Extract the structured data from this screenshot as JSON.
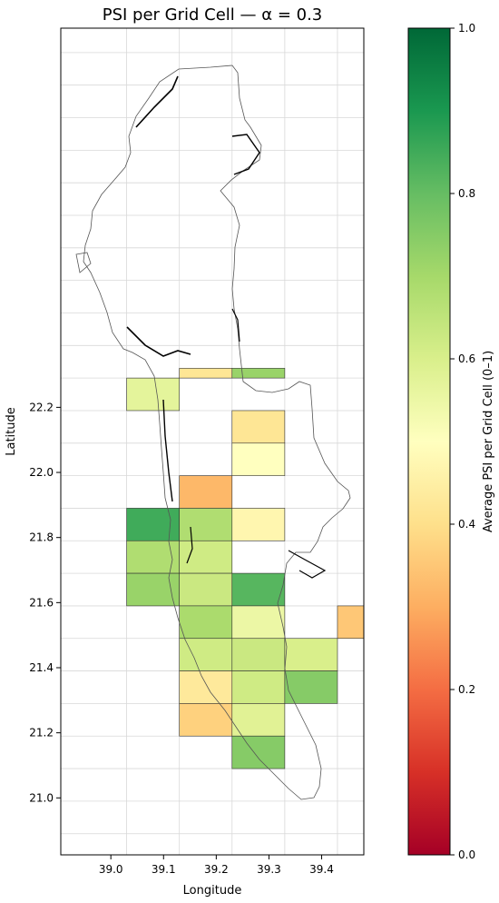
{
  "chart_data": {
    "type": "heatmap",
    "title": "PSI per Grid Cell — α = 0.3",
    "xlabel": "Longitude",
    "ylabel": "Latitude",
    "xlim": [
      38.905,
      39.48
    ],
    "ylim": [
      20.825,
      23.365
    ],
    "x_ticks": [
      "39.0",
      "39.1",
      "39.2",
      "39.3",
      "39.4"
    ],
    "y_ticks": [
      "21.0",
      "21.2",
      "21.4",
      "21.6",
      "21.8",
      "22.0",
      "22.2"
    ],
    "grid": true,
    "colorbar": {
      "label": "Average PSI per Grid Cell (0–1)",
      "colormap": "RdYlGn",
      "range": [
        0,
        1
      ],
      "ticks": [
        "0.0",
        "0.2",
        "0.4",
        "0.6",
        "0.8",
        "1.0"
      ]
    },
    "cells": [
      {
        "lon": [
          39.13,
          39.23
        ],
        "lat": [
          21.89,
          21.99
        ],
        "psi": 0.32
      },
      {
        "lon": [
          39.03,
          39.13
        ],
        "lat": [
          21.79,
          21.89
        ],
        "psi": 0.85
      },
      {
        "lon": [
          39.13,
          39.23
        ],
        "lat": [
          21.79,
          21.89
        ],
        "psi": 0.68
      },
      {
        "lon": [
          39.03,
          39.13
        ],
        "lat": [
          21.69,
          21.79
        ],
        "psi": 0.68
      },
      {
        "lon": [
          39.13,
          39.23
        ],
        "lat": [
          21.69,
          21.79
        ],
        "psi": 0.62
      },
      {
        "lon": [
          39.03,
          39.13
        ],
        "lat": [
          21.59,
          21.69
        ],
        "psi": 0.72
      },
      {
        "lon": [
          39.13,
          39.23
        ],
        "lat": [
          21.59,
          21.69
        ],
        "psi": 0.63
      },
      {
        "lon": [
          39.23,
          39.33
        ],
        "lat": [
          21.59,
          21.69
        ],
        "psi": 0.82
      },
      {
        "lon": [
          39.13,
          39.23
        ],
        "lat": [
          21.49,
          21.59
        ],
        "psi": 0.69
      },
      {
        "lon": [
          39.23,
          39.33
        ],
        "lat": [
          21.49,
          21.59
        ],
        "psi": 0.55
      },
      {
        "lon": [
          39.13,
          39.23
        ],
        "lat": [
          21.39,
          21.49
        ],
        "psi": 0.62
      },
      {
        "lon": [
          39.23,
          39.33
        ],
        "lat": [
          21.39,
          21.49
        ],
        "psi": 0.63
      },
      {
        "lon": [
          39.33,
          39.43
        ],
        "lat": [
          21.39,
          21.49
        ],
        "psi": 0.6
      },
      {
        "lon": [
          39.13,
          39.23
        ],
        "lat": [
          21.29,
          21.39
        ],
        "psi": 0.43
      },
      {
        "lon": [
          39.23,
          39.33
        ],
        "lat": [
          21.29,
          21.39
        ],
        "psi": 0.62
      },
      {
        "lon": [
          39.13,
          39.23
        ],
        "lat": [
          21.19,
          21.29
        ],
        "psi": 0.37
      },
      {
        "lon": [
          39.23,
          39.33
        ],
        "lat": [
          21.19,
          21.29
        ],
        "psi": 0.58
      },
      {
        "lon": [
          39.03,
          39.13
        ],
        "lat": [
          22.19,
          22.29
        ],
        "psi": 0.57
      },
      {
        "lon": [
          39.23,
          39.33
        ],
        "lat": [
          22.09,
          22.19
        ],
        "psi": 0.42
      },
      {
        "lon": [
          39.13,
          39.23
        ],
        "lat": [
          22.29,
          22.32
        ],
        "psi": 0.42
      },
      {
        "lon": [
          39.23,
          39.33
        ],
        "lat": [
          22.29,
          22.32
        ],
        "psi": 0.72
      },
      {
        "lon": [
          39.23,
          39.33
        ],
        "lat": [
          21.99,
          22.09
        ],
        "psi": 0.5
      },
      {
        "lon": [
          39.23,
          39.33
        ],
        "lat": [
          21.79,
          21.89
        ],
        "psi": 0.47
      },
      {
        "lon": [
          39.43,
          39.53
        ],
        "lat": [
          21.49,
          21.59
        ],
        "psi": 0.35
      },
      {
        "lon": [
          39.33,
          39.43
        ],
        "lat": [
          21.29,
          21.39
        ],
        "psi": 0.75
      },
      {
        "lon": [
          39.23,
          39.33
        ],
        "lat": [
          21.09,
          21.19
        ],
        "psi": 0.75
      }
    ]
  }
}
